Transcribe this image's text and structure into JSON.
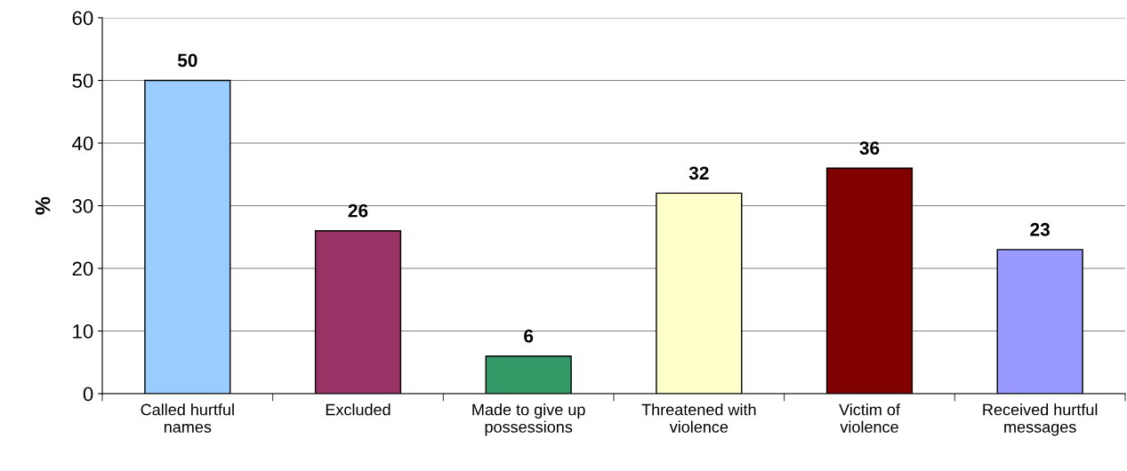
{
  "chart_data": {
    "type": "bar",
    "ylabel": "%",
    "categories": [
      "Called hurtful\nnames",
      "Excluded",
      "Made to give up\npossessions",
      "Threatened with\nviolence",
      "Victim of\nviolence",
      "Received hurtful\nmessages"
    ],
    "values": [
      50,
      26,
      6,
      32,
      36,
      23
    ],
    "colors": [
      "#99ccff",
      "#993366",
      "#339966",
      "#ffffcc",
      "#800000",
      "#9999ff"
    ],
    "ylim": [
      0,
      60
    ],
    "yticks": [
      0,
      10,
      20,
      30,
      40,
      50,
      60
    ],
    "grid": "y",
    "data_labels": true
  }
}
